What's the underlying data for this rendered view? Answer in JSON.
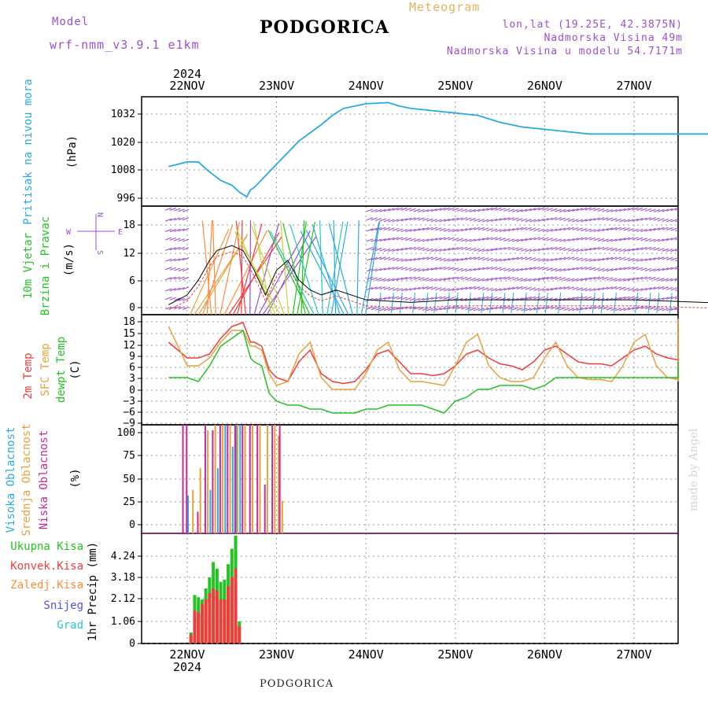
{
  "header": {
    "model_label": "Model",
    "model_name": "wrf-nmm_v3.9.1  e1km",
    "title": "PODGORICA",
    "meteogram_label": "Meteogram",
    "coords": "lon,lat (19.25E, 42.3875N)",
    "elevation": "Nadmorska Visina 49m",
    "model_elevation": "Nadmorska Visina u modelu 54.7171m"
  },
  "footer": {
    "station": "PODGORICA",
    "credit": "made by Angel"
  },
  "colors": {
    "pressure": "#2aaae2",
    "temp2m": "#f03c3c",
    "sfc": "#e6a23c",
    "dewpt": "#22c322",
    "high_cloud": "#2aaae2",
    "mid_cloud": "#e6a23c",
    "low_cloud": "#c8289a",
    "total_precip": "#22c322",
    "conv_precip": "#f03c3c",
    "frz_precip": "#ff8c3c",
    "snow": "#5050e6",
    "grad": "#28c8c8",
    "wind_label": "#22c322",
    "purple": "#9b4fd1"
  },
  "time_axis": {
    "year_label": "2024",
    "days": [
      "22NOV",
      "23NOV",
      "24NOV",
      "25NOV",
      "26NOV",
      "27NOV"
    ]
  },
  "chart_data": [
    {
      "type": "line",
      "id": "pressure",
      "ylabel_left": "Pritisak na nivou mora",
      "ylabel_unit": "(hPa)",
      "yticks": [
        "1032",
        "1020",
        "1008",
        "996"
      ],
      "ylim": [
        992,
        1039
      ],
      "x_unit": "hours from 2024-11-22 00:00",
      "x": [
        -5,
        0,
        3,
        5,
        9,
        12,
        14,
        16,
        17,
        18,
        21,
        24,
        30,
        36,
        39,
        42,
        48,
        54,
        57,
        60,
        66,
        72,
        78,
        84,
        90,
        96,
        102,
        108,
        114,
        120,
        126,
        132,
        138,
        144,
        150,
        156
      ],
      "values": [
        1009,
        1011,
        1011,
        1008,
        1003,
        1001,
        998,
        996,
        999,
        1000,
        1005,
        1010,
        1020,
        1027,
        1031,
        1034,
        1036,
        1036.5,
        1035,
        1034,
        1033,
        1032,
        1031,
        1028,
        1026,
        1025,
        1024,
        1023,
        1023,
        1023,
        1023,
        1023,
        1023,
        1023,
        1023,
        1023
      ]
    },
    {
      "type": "wind",
      "id": "wind",
      "ylabel_left": "10m Vjetar",
      "ylabel_left2": "Brzina i Pravac",
      "ylabel_unit": "(m/s)",
      "compass": [
        "N",
        "S",
        "W",
        "E"
      ],
      "yticks": [
        "18",
        "12",
        "6",
        "0"
      ],
      "ylim": [
        -1,
        21
      ],
      "x_unit": "hours from 2024-11-22 00:00",
      "x": [
        -5,
        0,
        3,
        6,
        8,
        10,
        12,
        15,
        18,
        21,
        24,
        27,
        30,
        33,
        36,
        40,
        48,
        60,
        72,
        96,
        120,
        156
      ],
      "values": [
        1,
        3,
        6,
        10,
        12,
        12.5,
        13,
        12,
        8,
        3,
        8,
        10,
        6,
        4,
        3,
        4,
        2,
        1.5,
        2,
        2,
        2,
        1
      ],
      "zones": [
        {
          "from": -5,
          "to": 0,
          "color": "#9b4fd1"
        },
        {
          "from": 0,
          "to": 4,
          "color": "#e6a23c"
        },
        {
          "from": 4,
          "to": 10,
          "color": "#ff8c3c"
        },
        {
          "from": 10,
          "to": 16,
          "color": "#f03c3c"
        },
        {
          "from": 16,
          "to": 22,
          "color": "#9b4fd1"
        },
        {
          "from": 22,
          "to": 28,
          "color": "#c8d23c"
        },
        {
          "from": 28,
          "to": 34,
          "color": "#22c322"
        },
        {
          "from": 34,
          "to": 38,
          "color": "#28c8c8"
        },
        {
          "from": 38,
          "to": 48,
          "color": "#2aaae2"
        },
        {
          "from": 48,
          "to": 156,
          "color": "#9b4fd1"
        }
      ]
    },
    {
      "type": "line",
      "id": "temperature",
      "ylabel_left": "2m Temp",
      "ylabel_left2": "SFC Temp",
      "ylabel_left3": "dewpt Temp",
      "ylabel_unit": "(C)",
      "yticks": [
        "18",
        "15",
        "12",
        "9",
        "6",
        "3",
        "0",
        "−3",
        "−6",
        "−9"
      ],
      "ylim": [
        -9,
        19
      ],
      "x_unit": "hours from 2024-11-22 00:00",
      "x": [
        -5,
        0,
        3,
        6,
        9,
        12,
        15,
        17,
        18,
        20,
        22,
        24,
        27,
        30,
        33,
        36,
        39,
        42,
        45,
        48,
        51,
        54,
        57,
        60,
        63,
        66,
        69,
        72,
        75,
        78,
        81,
        84,
        87,
        90,
        93,
        96,
        99,
        102,
        105,
        108,
        111,
        114,
        117,
        120,
        123,
        126,
        129,
        132,
        135,
        138,
        141,
        144,
        147,
        150,
        153,
        156
      ],
      "series": [
        {
          "name": "2m Temp",
          "color": "#f03c3c",
          "values": [
            12,
            8,
            8,
            9,
            13,
            16,
            17,
            12,
            12,
            11,
            5,
            3,
            2,
            7,
            10,
            4,
            2,
            1.5,
            2,
            5,
            9,
            10,
            7,
            4,
            4,
            3.5,
            4,
            6,
            9,
            10,
            8,
            6.5,
            6,
            5,
            7,
            10,
            11,
            9,
            7,
            6.5,
            6.5,
            6,
            8,
            10,
            11,
            9,
            8,
            7.5,
            7.5,
            7,
            9,
            12,
            14,
            14,
            15,
            15
          ]
        },
        {
          "name": "SFC Temp",
          "color": "#e6a23c",
          "values": [
            16,
            6,
            6,
            8,
            12,
            15,
            15,
            11,
            11,
            10,
            4,
            1,
            2,
            9,
            12,
            3,
            0,
            0,
            0,
            4,
            10,
            12,
            5,
            2,
            2,
            1.5,
            1,
            6,
            12,
            14,
            6,
            3,
            2,
            2,
            3,
            8,
            12,
            6,
            3,
            2.5,
            2.5,
            2,
            6,
            12,
            14,
            6,
            3,
            2.5,
            2.5,
            2,
            6,
            15,
            18,
            17,
            18,
            18
          ]
        },
        {
          "name": "dewpt Temp",
          "color": "#22c322",
          "values": [
            3,
            3,
            2,
            6,
            11,
            13,
            15,
            8,
            7,
            6,
            -1,
            -3,
            -4,
            -4,
            -5,
            -5,
            -6,
            -6,
            -6,
            -5,
            -5,
            -4,
            -4,
            -4,
            -4,
            -5,
            -6,
            -3,
            -2,
            0,
            0,
            1,
            1,
            1,
            0,
            1,
            3,
            3,
            3,
            3,
            3,
            3,
            3,
            3,
            3,
            3,
            3,
            3,
            3,
            3,
            3,
            3,
            5,
            6,
            7,
            7
          ]
        }
      ]
    },
    {
      "type": "bar",
      "id": "clouds",
      "ylabel_left": "Visoka Oblacnost",
      "ylabel_left2": "Srednja Oblacnost",
      "ylabel_left3": "Niska  Oblacnost",
      "ylabel_unit": "(%)",
      "yticks": [
        "100",
        "75",
        "50",
        "25",
        "0"
      ],
      "ylim": [
        0,
        100
      ],
      "x_unit": "hours from 2024-11-22 00:00",
      "series": [
        {
          "name": "Visoka Oblacnost",
          "color": "#2aaae2",
          "x": [
            0,
            6,
            8,
            10,
            12,
            13,
            14
          ],
          "values": [
            35,
            40,
            60,
            100,
            80,
            100,
            100
          ]
        },
        {
          "name": "Srednja Oblacnost",
          "color": "#e6a23c",
          "x": [
            1,
            3,
            5,
            7,
            9,
            11,
            13,
            15,
            17,
            19,
            21,
            23,
            24,
            25
          ],
          "values": [
            40,
            60,
            95,
            100,
            100,
            100,
            100,
            100,
            100,
            100,
            100,
            100,
            90,
            30
          ]
        },
        {
          "name": "Niska  Oblacnost",
          "color": "#c8289a",
          "x": [
            -2,
            -1,
            2,
            4,
            6,
            8,
            10,
            12,
            14,
            16,
            18,
            20,
            22,
            24
          ],
          "values": [
            100,
            100,
            20,
            100,
            95,
            100,
            100,
            100,
            100,
            100,
            100,
            45,
            100,
            100
          ]
        }
      ]
    },
    {
      "type": "bar",
      "id": "precip",
      "ylabel_right": "1hr Precip (mm)",
      "legend": [
        "Ukupna Kisa",
        "Konvek.Kisa",
        "Zaledj.Kisa",
        "Snijeg",
        "Grad"
      ],
      "yticks": [
        "4.24",
        "3.18",
        "2.12",
        "1.06",
        "0"
      ],
      "ylim": [
        0,
        5
      ],
      "x_unit": "hours from 2024-11-22 00:00",
      "x": [
        1,
        2,
        3,
        4,
        5,
        6,
        7,
        8,
        9,
        10,
        11,
        12,
        13,
        14,
        15,
        16
      ],
      "series": [
        {
          "name": "Ukupna Kisa",
          "color": "#22c322",
          "values": [
            0.5,
            2.2,
            2.1,
            2.0,
            2.5,
            3.0,
            3.7,
            3.4,
            2.8,
            2.9,
            3.6,
            4.3,
            4.9,
            1.0,
            0,
            0
          ]
        },
        {
          "name": "Konvek.Kisa",
          "color": "#f03c3c",
          "values": [
            0.4,
            1.5,
            1.4,
            1.8,
            2.0,
            2.3,
            2.5,
            2.4,
            2.0,
            2.0,
            2.6,
            3.0,
            3.4,
            0.8,
            0,
            0
          ]
        }
      ]
    }
  ]
}
